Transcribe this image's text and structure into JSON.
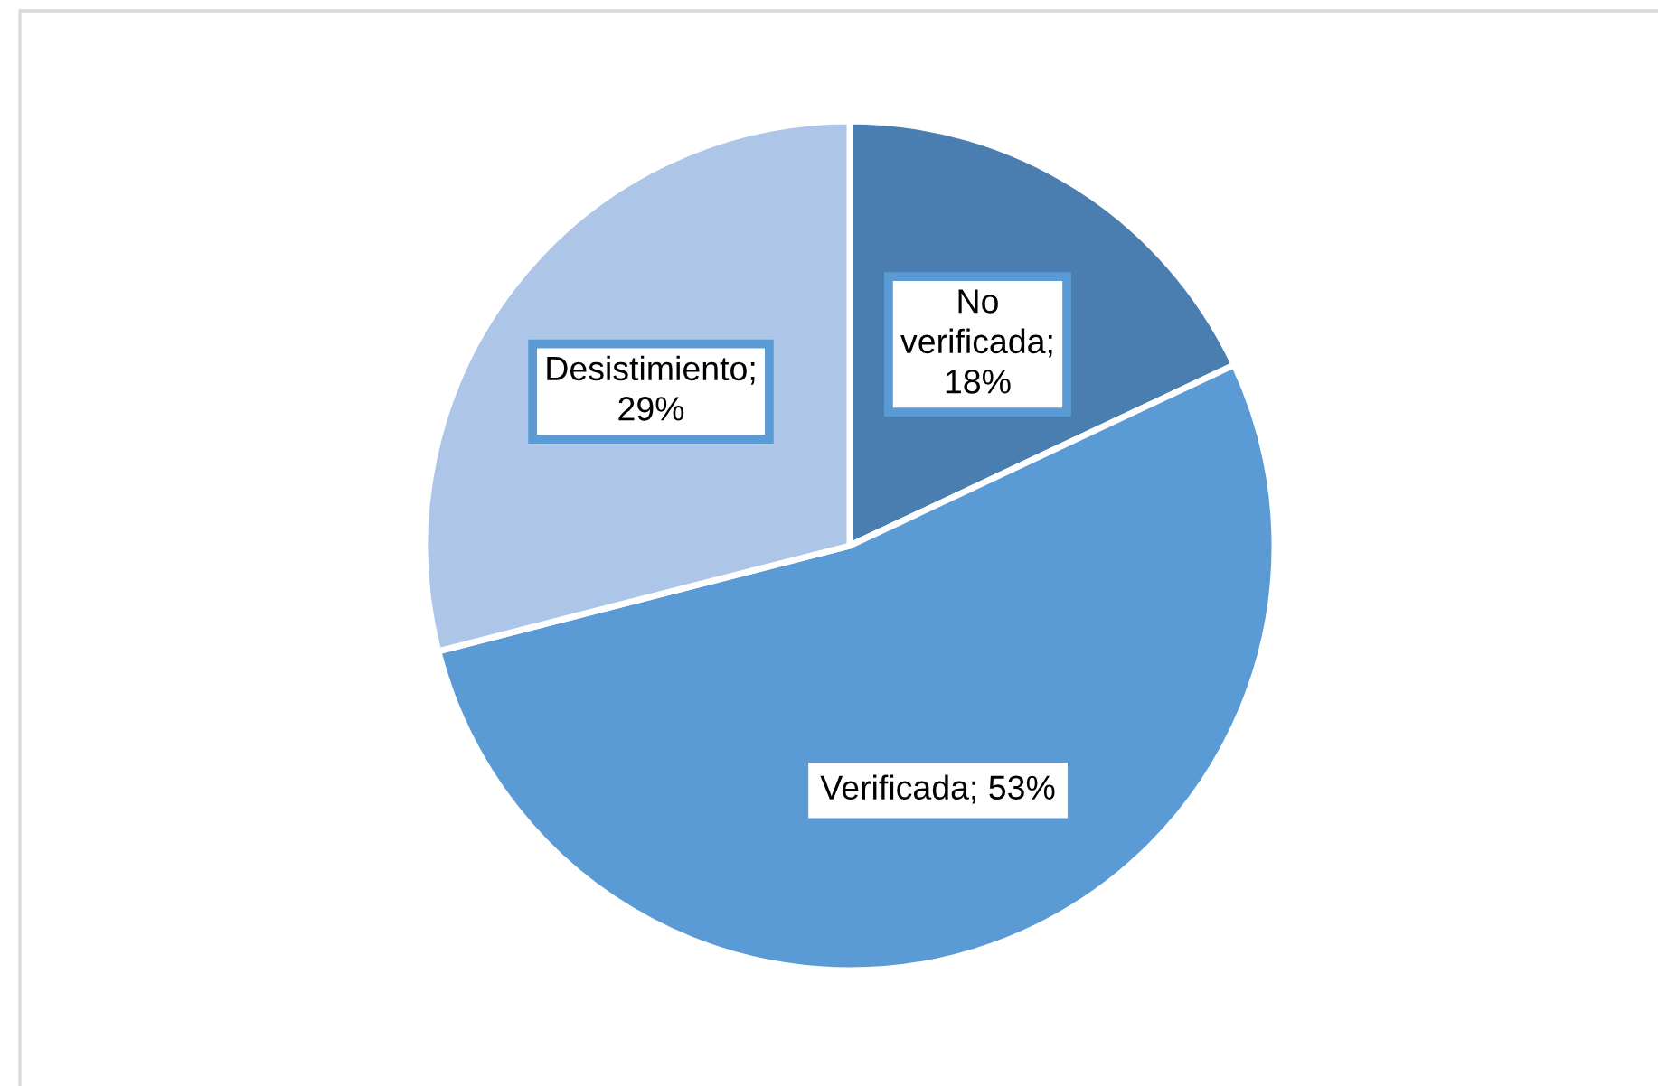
{
  "chart_data": {
    "type": "pie",
    "categories": [
      "No verificada",
      "Verificada",
      "Desistimiento"
    ],
    "values": [
      18,
      53,
      29
    ],
    "colors": [
      "#4a7eb0",
      "#5b9bd5",
      "#adc5e6"
    ],
    "value_labels": [
      "; 18%",
      "; 53%",
      "; 29%"
    ],
    "legend": false
  }
}
